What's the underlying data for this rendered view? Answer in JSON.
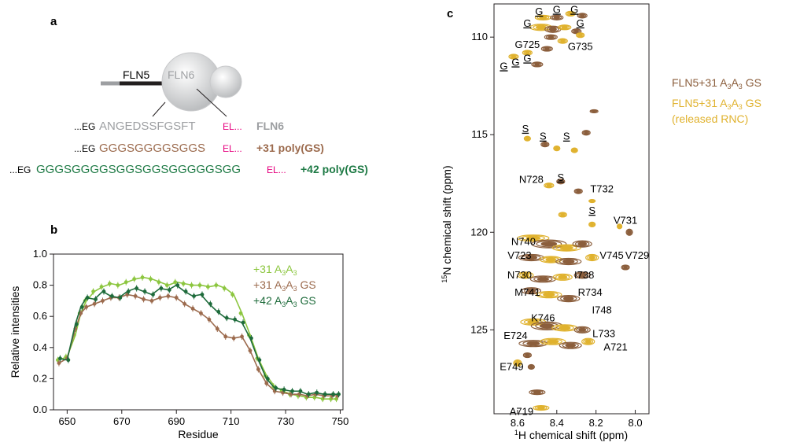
{
  "panels": {
    "a": {
      "label": "a",
      "fln5": "FLN5",
      "fln6": "FLN6",
      "rows": [
        {
          "prefix": "...EG",
          "seq": "ANGEDSSFGSFT",
          "suffix": "EL...",
          "name": "FLN6",
          "color": "#9d9fa2"
        },
        {
          "prefix": "...EG",
          "seq": "GGGSGGGGSGGS",
          "suffix": "EL...",
          "name": "+31 poly(GS)",
          "color": "#9c6b4e"
        },
        {
          "prefix": "...EG",
          "seq": "GGGSGGGGSGGSGGSGGGGGSGG",
          "suffix": "EL...",
          "name": "+42 poly(GS)",
          "color": "#1e7a45"
        }
      ],
      "colors": {
        "magenta": "#e6007e",
        "black": "#231f20",
        "grey": "#9d9fa2"
      }
    },
    "b": {
      "label": "b"
    },
    "c": {
      "label": "c",
      "legend": [
        {
          "text": "FLN5+31 A3A3 GS",
          "color": "#8b5e3c"
        },
        {
          "text": "FLN5+31 A3A3 GS",
          "color": "#e0b22e"
        },
        {
          "text": "(released RNC)",
          "color": "#e0b22e"
        }
      ],
      "xlabel": "1H chemical shift (ppm)",
      "ylabel": "15N chemical shift (ppm)",
      "xticks": [
        "8.6",
        "8.4",
        "8.2",
        "8.0"
      ],
      "yticks": [
        "110",
        "115",
        "120",
        "125"
      ],
      "peak_labels": [
        "G",
        "G",
        "G",
        "G",
        "G",
        "G725",
        "G735",
        "G",
        "G",
        "G",
        "S",
        "S",
        "S",
        "S",
        "S",
        "N728",
        "T732",
        "V731",
        "N740",
        "V745",
        "V729",
        "V723",
        "N730",
        "I738",
        "M741",
        "R734",
        "I748",
        "K746",
        "E724",
        "L733",
        "A721",
        "E749",
        "A719"
      ]
    }
  },
  "chart_data": {
    "type": "line",
    "xlabel": "Residue",
    "ylabel": "Relative intensities",
    "xlim": [
      645,
      751
    ],
    "ylim": [
      0.0,
      1.0
    ],
    "xticks": [
      650,
      670,
      690,
      710,
      730,
      750
    ],
    "yticks": [
      0.0,
      0.2,
      0.4,
      0.6,
      0.8,
      1.0
    ],
    "legend_position": "top-right",
    "series": [
      {
        "name": "+31 A3A3",
        "color": "#8cc63f",
        "x": [
          647,
          650,
          653,
          655,
          657,
          660,
          663,
          666,
          669,
          672,
          675,
          678,
          681,
          684,
          687,
          690,
          693,
          696,
          699,
          702,
          705,
          708,
          711,
          714,
          717,
          720,
          723,
          726,
          729,
          732,
          735,
          738,
          741,
          744,
          747,
          749
        ],
        "y": [
          0.32,
          0.34,
          0.48,
          0.62,
          0.7,
          0.76,
          0.79,
          0.81,
          0.8,
          0.82,
          0.84,
          0.85,
          0.84,
          0.82,
          0.8,
          0.82,
          0.81,
          0.8,
          0.8,
          0.79,
          0.8,
          0.78,
          0.74,
          0.62,
          0.48,
          0.33,
          0.22,
          0.15,
          0.12,
          0.1,
          0.09,
          0.08,
          0.08,
          0.07,
          0.07,
          0.07
        ]
      },
      {
        "name": "+31 A3A3 GS",
        "color": "#9c6b4e",
        "x": [
          647,
          650,
          653,
          655,
          657,
          660,
          663,
          666,
          669,
          672,
          675,
          678,
          681,
          684,
          687,
          690,
          693,
          696,
          699,
          702,
          705,
          708,
          711,
          714,
          717,
          720,
          723,
          726,
          729,
          732,
          735,
          738,
          741,
          744,
          747,
          749
        ],
        "y": [
          0.3,
          0.33,
          0.52,
          0.62,
          0.66,
          0.68,
          0.7,
          0.72,
          0.72,
          0.74,
          0.73,
          0.71,
          0.7,
          0.72,
          0.73,
          0.72,
          0.68,
          0.65,
          0.62,
          0.58,
          0.52,
          0.47,
          0.46,
          0.47,
          0.38,
          0.26,
          0.17,
          0.12,
          0.11,
          0.1,
          0.1,
          0.09,
          0.1,
          0.09,
          0.09,
          0.09
        ]
      },
      {
        "name": "+42 A3A3 GS",
        "color": "#1e6b3b",
        "x": [
          647,
          650,
          653,
          655,
          657,
          660,
          663,
          666,
          669,
          672,
          675,
          678,
          681,
          684,
          687,
          690,
          693,
          696,
          699,
          702,
          705,
          708,
          711,
          714,
          717,
          720,
          723,
          726,
          729,
          732,
          735,
          738,
          741,
          744,
          747,
          749
        ],
        "y": [
          0.33,
          0.32,
          0.55,
          0.66,
          0.72,
          0.71,
          0.76,
          0.73,
          0.72,
          0.76,
          0.78,
          0.76,
          0.74,
          0.78,
          0.77,
          0.8,
          0.76,
          0.73,
          0.74,
          0.68,
          0.63,
          0.59,
          0.58,
          0.56,
          0.46,
          0.32,
          0.2,
          0.14,
          0.13,
          0.12,
          0.12,
          0.1,
          0.11,
          0.1,
          0.1,
          0.1
        ]
      }
    ]
  }
}
